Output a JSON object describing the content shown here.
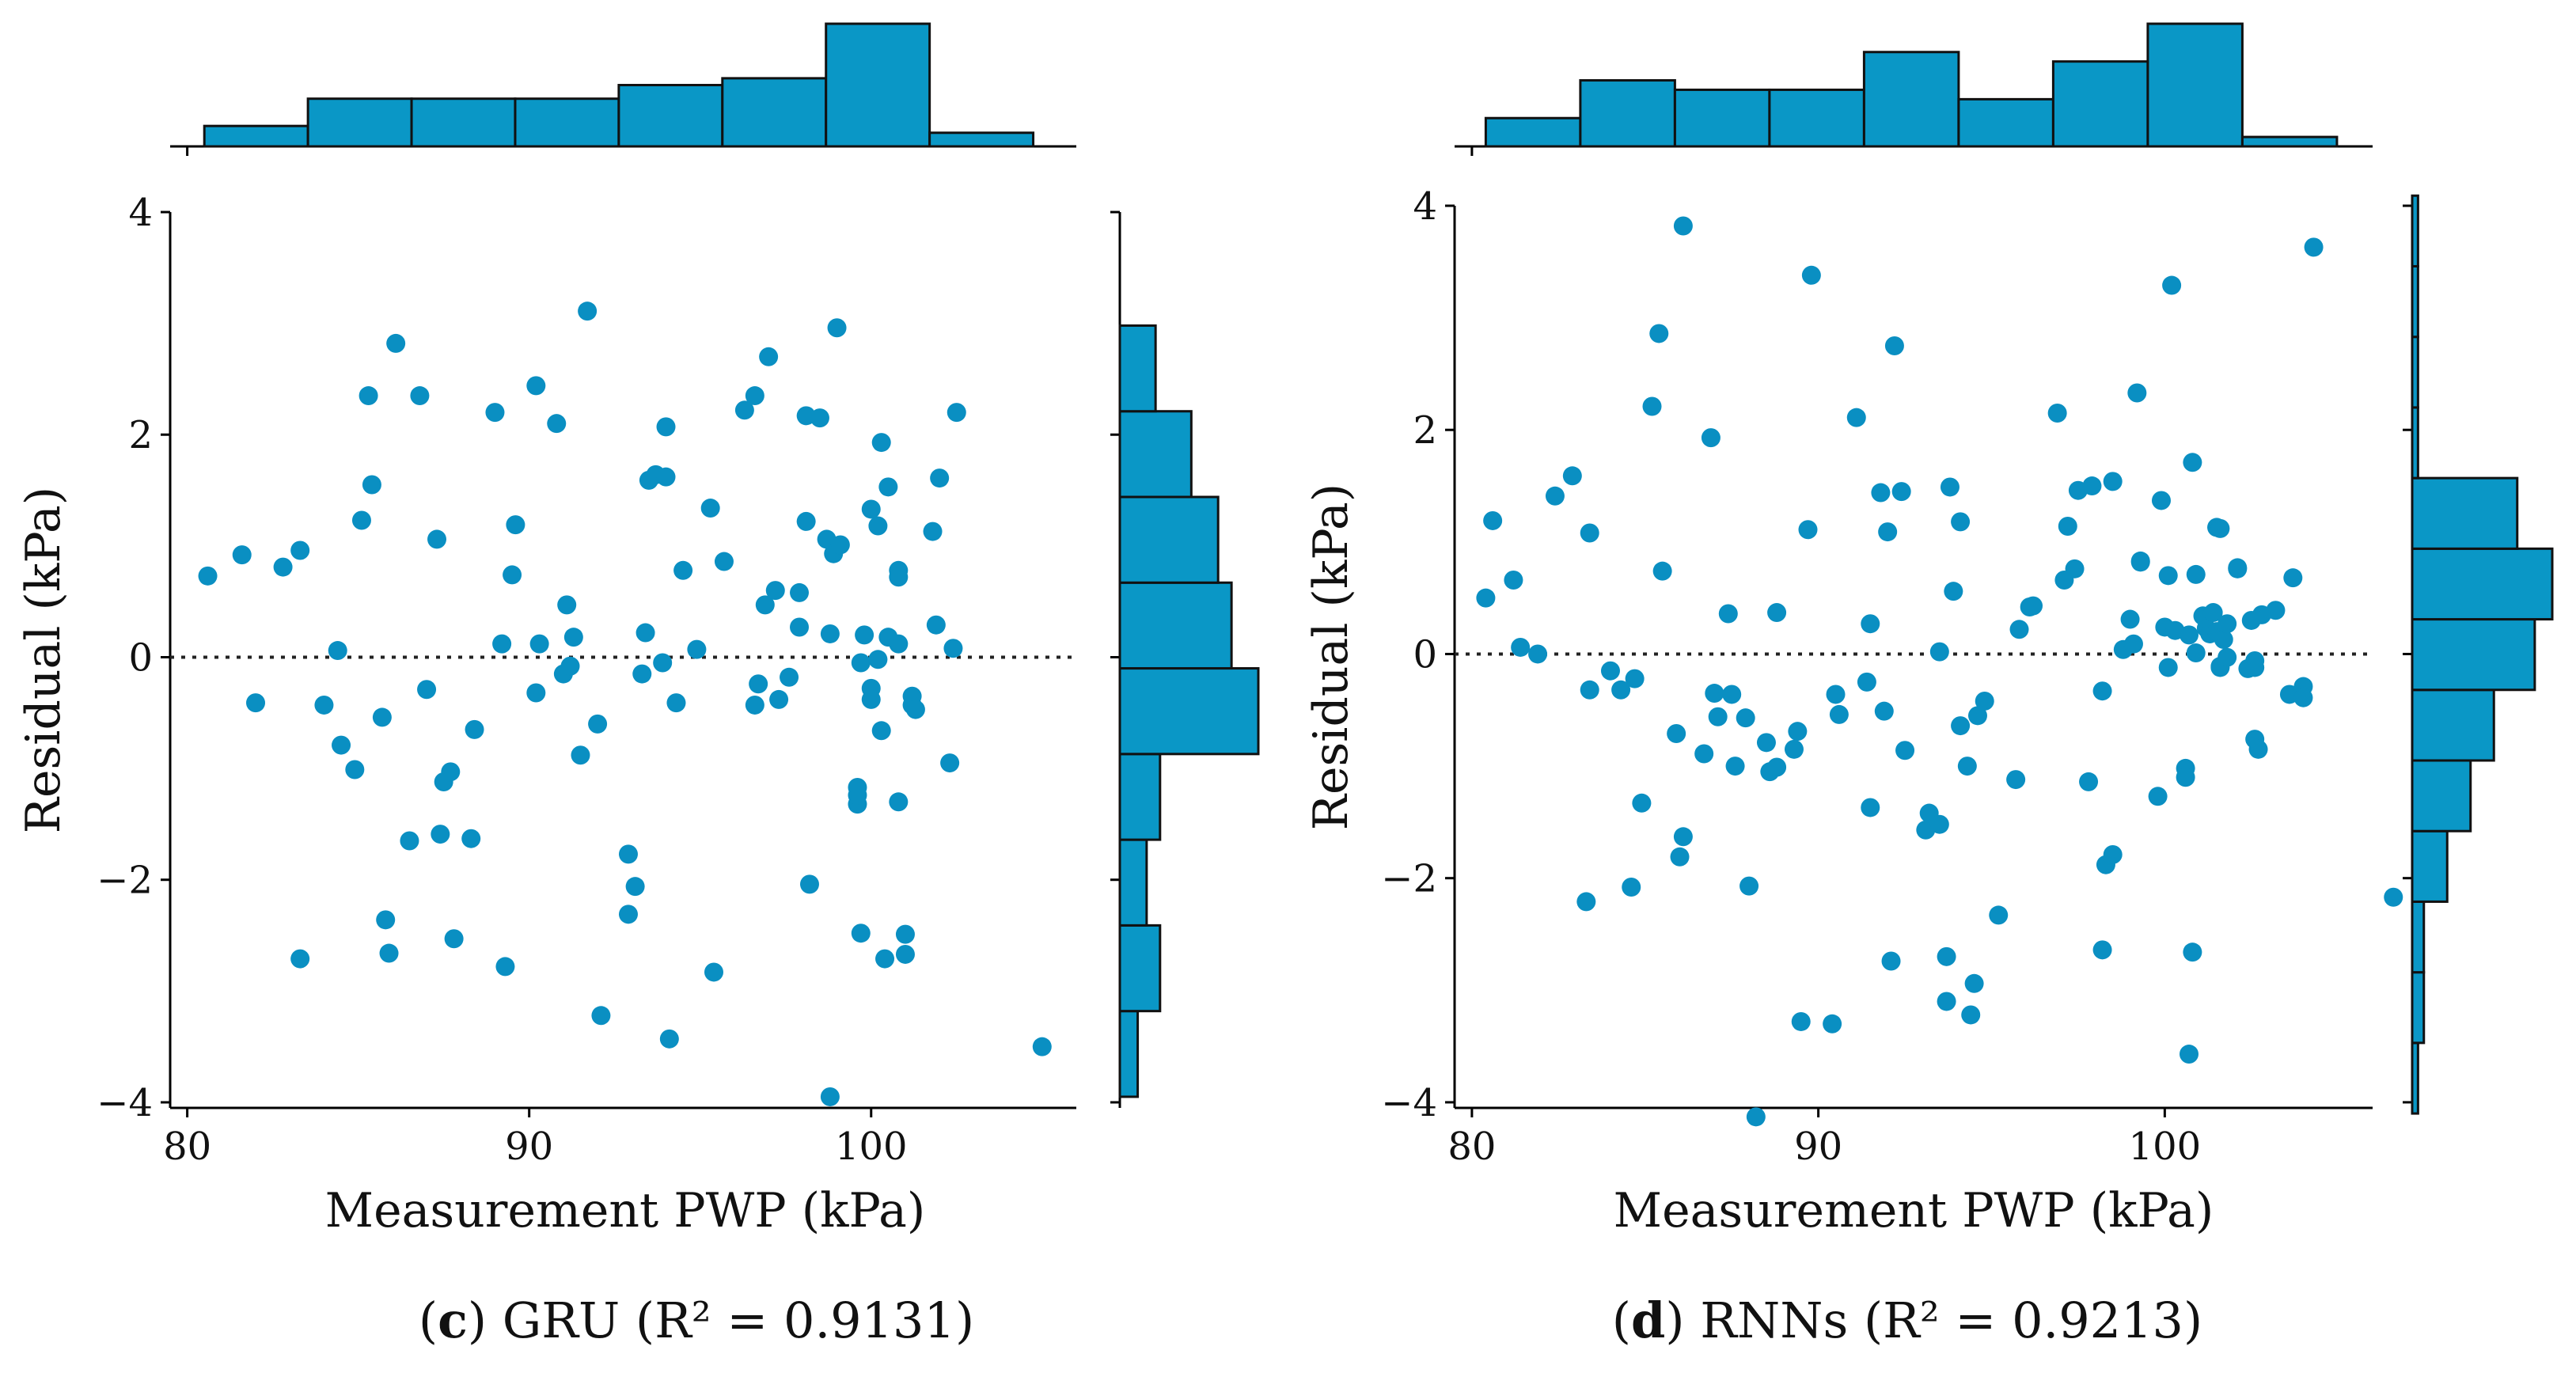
{
  "colors": {
    "marker": "#0a8fc2",
    "bar": "#0a97c6",
    "edge": "#111111"
  },
  "chart_data": [
    {
      "type": "scatter",
      "panel_id": "c",
      "caption_label": "c",
      "caption_rest": " GRU (R² = 0.9131)",
      "xlabel": "Measurement PWP (kPa)",
      "ylabel": "Residual (kPa)",
      "xlim": [
        79.5,
        106
      ],
      "ylim": [
        -4.05,
        4.0
      ],
      "xticks": [
        80,
        90,
        100
      ],
      "xtick_labels": [
        "80",
        "90",
        "100"
      ],
      "yticks": [
        4,
        2,
        0,
        -2,
        -4
      ],
      "ytick_labels": [
        "4",
        "2",
        "0",
        "−2",
        "−4"
      ],
      "reference_line_y": 0,
      "marginal_x": {
        "edges": [
          80.5,
          83.53,
          86.56,
          89.59,
          92.62,
          95.65,
          98.68,
          101.71,
          104.74
        ],
        "counts": [
          3,
          7,
          7,
          7,
          9,
          10,
          18,
          2
        ]
      },
      "marginal_y": {
        "edges": [
          -3.95,
          -3.18,
          -2.41,
          -1.64,
          -0.87,
          -0.1,
          0.67,
          1.44,
          2.21,
          2.98
        ],
        "counts": [
          4,
          9,
          6,
          9,
          31,
          25,
          22,
          16,
          8
        ]
      },
      "points": [
        [
          80.6,
          0.73
        ],
        [
          81.6,
          0.92
        ],
        [
          82,
          -0.41
        ],
        [
          82.8,
          0.81
        ],
        [
          83.3,
          -2.71
        ],
        [
          83.3,
          0.96
        ],
        [
          84,
          -0.43
        ],
        [
          84.4,
          0.06
        ],
        [
          84.5,
          -0.79
        ],
        [
          84.9,
          -1.01
        ],
        [
          85.1,
          1.23
        ],
        [
          85.3,
          2.35
        ],
        [
          85.4,
          1.55
        ],
        [
          85.7,
          -0.54
        ],
        [
          85.8,
          -2.36
        ],
        [
          85.9,
          -2.66
        ],
        [
          86.1,
          2.82
        ],
        [
          86.5,
          -1.65
        ],
        [
          86.8,
          2.35
        ],
        [
          87,
          -0.29
        ],
        [
          87.3,
          1.06
        ],
        [
          87.4,
          -1.59
        ],
        [
          87.5,
          -1.12
        ],
        [
          87.7,
          -1.03
        ],
        [
          87.8,
          -2.53
        ],
        [
          88.3,
          -1.63
        ],
        [
          88.4,
          -0.65
        ],
        [
          89,
          2.2
        ],
        [
          89.2,
          0.12
        ],
        [
          89.3,
          -2.78
        ],
        [
          89.5,
          0.74
        ],
        [
          89.6,
          1.19
        ],
        [
          90.2,
          -0.32
        ],
        [
          90.2,
          2.44
        ],
        [
          90.3,
          0.12
        ],
        [
          90.8,
          2.1
        ],
        [
          91,
          -0.15
        ],
        [
          91.1,
          0.47
        ],
        [
          91.2,
          -0.08
        ],
        [
          91.3,
          0.18
        ],
        [
          91.5,
          -0.88
        ],
        [
          91.7,
          3.11
        ],
        [
          92,
          -0.6
        ],
        [
          92.1,
          -3.22
        ],
        [
          92.9,
          -2.31
        ],
        [
          92.9,
          -1.77
        ],
        [
          93.1,
          -2.06
        ],
        [
          93.3,
          -0.15
        ],
        [
          93.4,
          0.22
        ],
        [
          93.5,
          1.59
        ],
        [
          93.7,
          1.64
        ],
        [
          93.9,
          -0.05
        ],
        [
          94,
          2.07
        ],
        [
          94,
          1.62
        ],
        [
          94.1,
          -3.43
        ],
        [
          94.3,
          -0.41
        ],
        [
          94.5,
          0.78
        ],
        [
          94.9,
          0.07
        ],
        [
          95.3,
          1.34
        ],
        [
          95.4,
          -2.83
        ],
        [
          95.7,
          0.86
        ],
        [
          96.3,
          2.22
        ],
        [
          96.6,
          -0.43
        ],
        [
          96.6,
          2.35
        ],
        [
          96.7,
          -0.24
        ],
        [
          96.9,
          0.47
        ],
        [
          97,
          2.7
        ],
        [
          97.2,
          0.6
        ],
        [
          97.3,
          -0.38
        ],
        [
          97.6,
          -0.18
        ],
        [
          97.9,
          0.27
        ],
        [
          97.9,
          0.58
        ],
        [
          98.1,
          2.17
        ],
        [
          98.1,
          1.22
        ],
        [
          98.2,
          -2.04
        ],
        [
          98.5,
          2.15
        ],
        [
          98.7,
          1.06
        ],
        [
          98.8,
          0.21
        ],
        [
          98.8,
          -3.95
        ],
        [
          98.9,
          0.93
        ],
        [
          99,
          2.96
        ],
        [
          99.1,
          1.01
        ],
        [
          99.6,
          -1.17
        ],
        [
          99.6,
          -1.32
        ],
        [
          99.6,
          -1.24
        ],
        [
          99.7,
          -0.05
        ],
        [
          99.7,
          -2.48
        ],
        [
          99.8,
          0.2
        ],
        [
          100,
          -0.28
        ],
        [
          100,
          -0.38
        ],
        [
          100,
          1.33
        ],
        [
          100.2,
          -0.02
        ],
        [
          100.2,
          1.18
        ],
        [
          100.3,
          1.93
        ],
        [
          100.3,
          -0.66
        ],
        [
          100.4,
          -2.71
        ],
        [
          100.5,
          1.53
        ],
        [
          100.5,
          0.18
        ],
        [
          100.8,
          0.78
        ],
        [
          100.8,
          0.12
        ],
        [
          100.8,
          0.72
        ],
        [
          100.8,
          -1.3
        ],
        [
          101,
          -2.67
        ],
        [
          101,
          -2.49
        ],
        [
          101.2,
          -0.43
        ],
        [
          101.2,
          -0.35
        ],
        [
          101.3,
          -0.47
        ],
        [
          101.8,
          1.13
        ],
        [
          101.9,
          0.29
        ],
        [
          102,
          1.61
        ],
        [
          102.3,
          -0.95
        ],
        [
          102.4,
          0.08
        ],
        [
          102.5,
          2.2
        ],
        [
          105,
          -3.5
        ]
      ]
    },
    {
      "type": "scatter",
      "panel_id": "d",
      "caption_label": "d",
      "caption_rest": " RNNs (R² = 0.9213)",
      "xlabel": "Measurement PWP (kPa)",
      "ylabel": "Residual (kPa)",
      "xlim": [
        79.5,
        106
      ],
      "ylim": [
        -4.05,
        4.0
      ],
      "xticks": [
        80,
        90,
        100
      ],
      "xtick_labels": [
        "80",
        "90",
        "100"
      ],
      "yticks": [
        4,
        2,
        0,
        -2,
        -4
      ],
      "ytick_labels": [
        "4",
        "2",
        "0",
        "−2",
        "−4"
      ],
      "reference_line_y": 0,
      "marginal_x": {
        "edges": [
          80.4,
          83.13,
          85.86,
          88.59,
          91.32,
          94.05,
          96.78,
          99.51,
          102.24,
          104.97
        ],
        "counts": [
          3,
          7,
          6,
          6,
          10,
          5,
          9,
          13,
          1
        ]
      },
      "marginal_y": {
        "edges": [
          -4.1,
          -3.47,
          -2.84,
          -2.21,
          -1.58,
          -0.95,
          -0.32,
          0.31,
          0.94,
          1.57,
          2.2,
          2.83,
          3.46,
          4.09
        ],
        "counts": [
          1,
          2,
          2,
          6,
          10,
          14,
          21,
          24,
          18,
          1,
          1,
          1,
          1
        ]
      },
      "points": [
        [
          80.4,
          0.5
        ],
        [
          80.6,
          1.19
        ],
        [
          81.2,
          0.66
        ],
        [
          81.4,
          0.06
        ],
        [
          81.9,
          0
        ],
        [
          82.4,
          1.41
        ],
        [
          82.9,
          1.59
        ],
        [
          83.3,
          -2.21
        ],
        [
          83.4,
          1.08
        ],
        [
          83.4,
          -0.32
        ],
        [
          84,
          -0.15
        ],
        [
          84.3,
          -0.32
        ],
        [
          84.6,
          -2.08
        ],
        [
          84.7,
          -0.22
        ],
        [
          84.9,
          -1.33
        ],
        [
          85.2,
          2.21
        ],
        [
          85.4,
          2.86
        ],
        [
          85.5,
          0.74
        ],
        [
          85.9,
          -0.71
        ],
        [
          86,
          -1.81
        ],
        [
          86.1,
          -1.63
        ],
        [
          86.1,
          3.82
        ],
        [
          86.7,
          -0.89
        ],
        [
          86.9,
          1.93
        ],
        [
          87,
          -0.35
        ],
        [
          87.1,
          -0.56
        ],
        [
          87.4,
          0.36
        ],
        [
          87.5,
          -0.36
        ],
        [
          87.6,
          -1
        ],
        [
          87.9,
          -0.57
        ],
        [
          88,
          -2.07
        ],
        [
          88.2,
          -4.13
        ],
        [
          88.5,
          -0.79
        ],
        [
          88.6,
          -1.05
        ],
        [
          88.8,
          0.37
        ],
        [
          88.8,
          -1.01
        ],
        [
          89.3,
          -0.85
        ],
        [
          89.4,
          -0.69
        ],
        [
          89.5,
          -3.28
        ],
        [
          89.7,
          1.11
        ],
        [
          89.8,
          3.38
        ],
        [
          90.4,
          -3.3
        ],
        [
          90.5,
          -0.36
        ],
        [
          90.6,
          -0.54
        ],
        [
          91.1,
          2.11
        ],
        [
          91.4,
          -0.25
        ],
        [
          91.5,
          0.27
        ],
        [
          91.5,
          -1.37
        ],
        [
          91.8,
          1.44
        ],
        [
          91.9,
          -0.51
        ],
        [
          92,
          1.09
        ],
        [
          92.1,
          -2.74
        ],
        [
          92.2,
          2.75
        ],
        [
          92.4,
          1.45
        ],
        [
          92.5,
          -0.86
        ],
        [
          93.1,
          -1.57
        ],
        [
          93.2,
          -1.42
        ],
        [
          93.5,
          0.02
        ],
        [
          93.5,
          -1.52
        ],
        [
          93.7,
          -2.7
        ],
        [
          93.7,
          -3.1
        ],
        [
          93.8,
          1.49
        ],
        [
          93.9,
          0.56
        ],
        [
          94.1,
          1.18
        ],
        [
          94.1,
          -0.64
        ],
        [
          94.3,
          -1
        ],
        [
          94.4,
          -3.22
        ],
        [
          94.5,
          -2.94
        ],
        [
          94.6,
          -0.55
        ],
        [
          94.8,
          -0.42
        ],
        [
          95.2,
          -2.33
        ],
        [
          95.7,
          -1.12
        ],
        [
          95.8,
          0.22
        ],
        [
          96.1,
          0.42
        ],
        [
          96.2,
          0.43
        ],
        [
          96.9,
          2.15
        ],
        [
          97.1,
          0.66
        ],
        [
          97.2,
          1.14
        ],
        [
          97.4,
          0.76
        ],
        [
          97.5,
          1.46
        ],
        [
          97.8,
          -1.14
        ],
        [
          97.9,
          1.5
        ],
        [
          98.2,
          -2.64
        ],
        [
          98.2,
          -0.33
        ],
        [
          98.3,
          -1.88
        ],
        [
          98.5,
          -1.79
        ],
        [
          98.5,
          1.54
        ],
        [
          98.8,
          0.04
        ],
        [
          99,
          0.31
        ],
        [
          99.1,
          0.09
        ],
        [
          99.2,
          2.33
        ],
        [
          99.3,
          0.83
        ],
        [
          99.3,
          0.82
        ],
        [
          99.8,
          -1.27
        ],
        [
          99.9,
          1.37
        ],
        [
          100,
          0.24
        ],
        [
          100.1,
          0.7
        ],
        [
          100.1,
          -0.12
        ],
        [
          100.2,
          3.29
        ],
        [
          100.3,
          0.21
        ],
        [
          100.6,
          -1.02
        ],
        [
          100.6,
          -1.1
        ],
        [
          100.7,
          0.17
        ],
        [
          100.7,
          -3.57
        ],
        [
          100.8,
          1.71
        ],
        [
          100.8,
          -2.66
        ],
        [
          100.9,
          0.71
        ],
        [
          100.9,
          0.01
        ],
        [
          101.1,
          0.34
        ],
        [
          101.2,
          0.23
        ],
        [
          101.3,
          0.18
        ],
        [
          101.4,
          0.37
        ],
        [
          101.5,
          0.2
        ],
        [
          101.5,
          1.13
        ],
        [
          101.6,
          1.12
        ],
        [
          101.6,
          -0.11
        ],
        [
          101.6,
          -0.12
        ],
        [
          101.7,
          0.13
        ],
        [
          101.8,
          0.27
        ],
        [
          101.8,
          -0.03
        ],
        [
          102.1,
          0.76
        ],
        [
          102.1,
          0.77
        ],
        [
          102.4,
          -0.13
        ],
        [
          102.5,
          0.3
        ],
        [
          102.6,
          -0.06
        ],
        [
          102.6,
          -0.12
        ],
        [
          102.6,
          -0.76
        ],
        [
          102.7,
          -0.85
        ],
        [
          102.8,
          0.35
        ],
        [
          103.2,
          0.39
        ],
        [
          103.6,
          -0.36
        ],
        [
          103.7,
          0.68
        ],
        [
          104,
          -0.29
        ],
        [
          104,
          -0.39
        ],
        [
          104.3,
          3.63
        ],
        [
          106.6,
          -2.17
        ]
      ]
    }
  ]
}
